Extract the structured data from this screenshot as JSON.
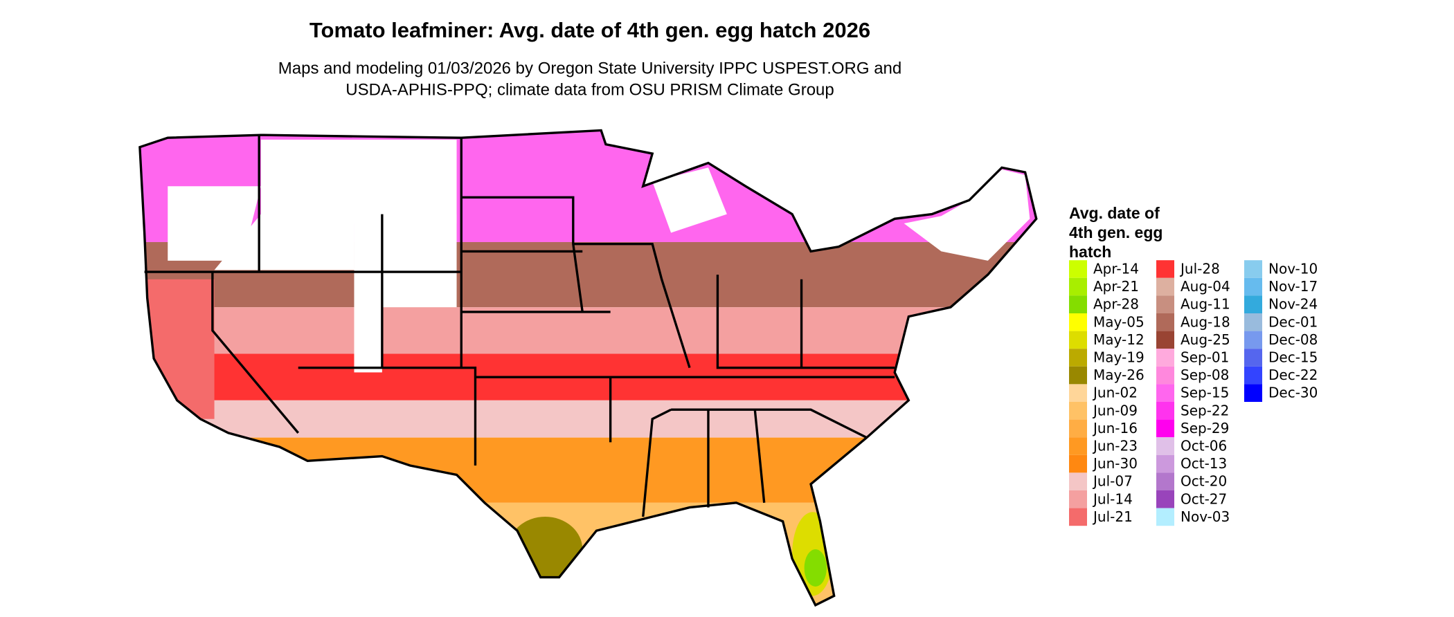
{
  "title": "Tomato leafminer: Avg. date of 4th gen. egg hatch 2026",
  "subtitle": [
    "Maps and modeling 01/03/2026 by Oregon State University IPPC USPEST.ORG and",
    "USDA-APHIS-PPQ; climate data from OSU PRISM Climate Group"
  ],
  "legend": {
    "title": [
      "Avg. date of",
      "4th gen. egg",
      "hatch"
    ],
    "items": [
      {
        "label": "Apr-14",
        "color": "#ccff00"
      },
      {
        "label": "Apr-21",
        "color": "#a8ee00"
      },
      {
        "label": "Apr-28",
        "color": "#84dd00"
      },
      {
        "label": "May-05",
        "color": "#ffff00"
      },
      {
        "label": "May-12",
        "color": "#dddd00"
      },
      {
        "label": "May-19",
        "color": "#bbaa00"
      },
      {
        "label": "May-26",
        "color": "#998800"
      },
      {
        "label": "Jun-02",
        "color": "#ffd699"
      },
      {
        "label": "Jun-09",
        "color": "#ffc266"
      },
      {
        "label": "Jun-16",
        "color": "#ffad44"
      },
      {
        "label": "Jun-23",
        "color": "#ff9922"
      },
      {
        "label": "Jun-30",
        "color": "#ff8811"
      },
      {
        "label": "Jul-07",
        "color": "#f4c6c6"
      },
      {
        "label": "Jul-14",
        "color": "#f4a0a0"
      },
      {
        "label": "Jul-21",
        "color": "#f46b6b"
      },
      {
        "label": "Jul-28",
        "color": "#ff3333"
      },
      {
        "label": "Aug-04",
        "color": "#ddb0a0"
      },
      {
        "label": "Aug-11",
        "color": "#c88f80"
      },
      {
        "label": "Aug-18",
        "color": "#b06a5a"
      },
      {
        "label": "Aug-25",
        "color": "#994433"
      },
      {
        "label": "Sep-01",
        "color": "#ffaadd"
      },
      {
        "label": "Sep-08",
        "color": "#ff88dd"
      },
      {
        "label": "Sep-15",
        "color": "#ff66ee"
      },
      {
        "label": "Sep-22",
        "color": "#ff33ee"
      },
      {
        "label": "Sep-29",
        "color": "#ff00ee"
      },
      {
        "label": "Oct-06",
        "color": "#e0c0e8"
      },
      {
        "label": "Oct-13",
        "color": "#cc99dd"
      },
      {
        "label": "Oct-20",
        "color": "#b377cc"
      },
      {
        "label": "Oct-27",
        "color": "#9944bb"
      },
      {
        "label": "Nov-03",
        "color": "#b3eeff"
      },
      {
        "label": "Nov-10",
        "color": "#88ccee"
      },
      {
        "label": "Nov-17",
        "color": "#66bbee"
      },
      {
        "label": "Nov-24",
        "color": "#33aadd"
      },
      {
        "label": "Dec-01",
        "color": "#99bbdd"
      },
      {
        "label": "Dec-08",
        "color": "#7799ee"
      },
      {
        "label": "Dec-15",
        "color": "#5566ee"
      },
      {
        "label": "Dec-22",
        "color": "#3344ff"
      },
      {
        "label": "Dec-30",
        "color": "#0000ff"
      }
    ]
  }
}
